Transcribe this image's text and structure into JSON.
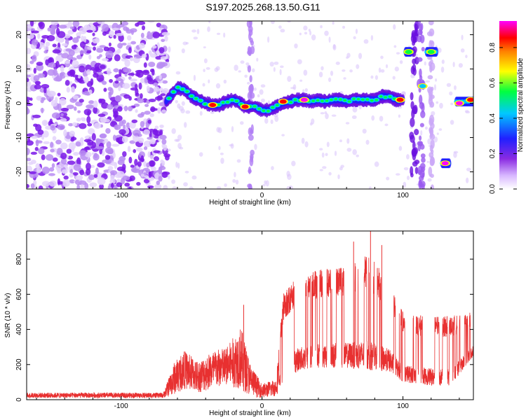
{
  "title": "S197.2025.268.13.50.G11",
  "colors": {
    "snr_line": "#e83030",
    "axis": "#000000"
  },
  "chart_data": [
    {
      "type": "heatmap",
      "xlabel": "Height of straight line (km)",
      "ylabel": "Frequency (Hz)",
      "xlim": [
        -167,
        150
      ],
      "ylim": [
        -25,
        24
      ],
      "xticks": [
        -100,
        0,
        100
      ],
      "xtick_labels": [
        "-100",
        "0",
        "100"
      ],
      "yticks": [
        -20,
        -10,
        0,
        10,
        20
      ],
      "ytick_labels": [
        "-20",
        "-10",
        "0",
        "10",
        "20"
      ],
      "colorbar": {
        "label": "Normalized spectral amplitude",
        "range": [
          0,
          0.95
        ],
        "ticks": [
          0.0,
          0.2,
          0.4,
          0.6,
          0.8
        ],
        "tick_labels": [
          "0.0",
          "0.2",
          "0.4",
          "0.6",
          "0.8"
        ]
      },
      "ridge": [
        {
          "x": -65,
          "f": 2
        },
        {
          "x": -60,
          "f": 4.5
        },
        {
          "x": -55,
          "f": 4
        },
        {
          "x": -50,
          "f": 2
        },
        {
          "x": -45,
          "f": 1
        },
        {
          "x": -40,
          "f": 0
        },
        {
          "x": -35,
          "f": -0.5
        },
        {
          "x": -30,
          "f": -0.5
        },
        {
          "x": -25,
          "f": 0.5
        },
        {
          "x": -20,
          "f": 1
        },
        {
          "x": -15,
          "f": 0
        },
        {
          "x": -12,
          "f": -1
        },
        {
          "x": -8,
          "f": -1
        },
        {
          "x": -5,
          "f": -1
        },
        {
          "x": 0,
          "f": -2
        },
        {
          "x": 5,
          "f": -2
        },
        {
          "x": 10,
          "f": -1
        },
        {
          "x": 15,
          "f": 0
        },
        {
          "x": 20,
          "f": 0.5
        },
        {
          "x": 25,
          "f": 1
        },
        {
          "x": 30,
          "f": 1
        },
        {
          "x": 35,
          "f": 0.5
        },
        {
          "x": 40,
          "f": 1
        },
        {
          "x": 45,
          "f": 0.5
        },
        {
          "x": 50,
          "f": 1
        },
        {
          "x": 55,
          "f": 1
        },
        {
          "x": 60,
          "f": 0.5
        },
        {
          "x": 65,
          "f": 1
        },
        {
          "x": 70,
          "f": 1
        },
        {
          "x": 75,
          "f": 1
        },
        {
          "x": 80,
          "f": 1
        },
        {
          "x": 85,
          "f": 2
        },
        {
          "x": 90,
          "f": 2
        },
        {
          "x": 95,
          "f": 1
        },
        {
          "x": 99,
          "f": 1
        }
      ],
      "hotspots": [
        {
          "x": 30,
          "f": 1,
          "v": 0.9
        },
        {
          "x": -35,
          "f": -0.5,
          "v": 0.8
        },
        {
          "x": -12,
          "f": -1,
          "v": 0.85
        },
        {
          "x": 15,
          "f": 0.5,
          "v": 0.8
        },
        {
          "x": 98,
          "f": 1,
          "v": 0.85
        },
        {
          "x": 140,
          "f": 0,
          "v": 0.9
        },
        {
          "x": 148,
          "f": 1,
          "v": 0.85
        },
        {
          "x": 130,
          "f": -17.5,
          "v": 0.9
        },
        {
          "x": 120,
          "f": 15,
          "v": 0.45
        },
        {
          "x": 104,
          "f": 15,
          "v": 0.45
        },
        {
          "x": 114,
          "f": 5,
          "v": 0.35
        }
      ]
    },
    {
      "type": "line",
      "xlabel": "Height of straight line (km)",
      "ylabel": "SNR (10 * v/v)",
      "xlim": [
        -167,
        150
      ],
      "ylim": [
        0,
        960
      ],
      "xticks": [
        -100,
        0,
        100
      ],
      "xtick_labels": [
        "-100",
        "0",
        "100"
      ],
      "yticks": [
        0,
        200,
        400,
        600,
        800
      ],
      "ytick_labels": [
        "0",
        "200",
        "400",
        "600",
        "800"
      ],
      "envelope": [
        {
          "x": -167,
          "lo": 10,
          "hi": 40
        },
        {
          "x": -70,
          "lo": 10,
          "hi": 40
        },
        {
          "x": -62,
          "lo": 30,
          "hi": 220
        },
        {
          "x": -55,
          "lo": 60,
          "hi": 280
        },
        {
          "x": -45,
          "lo": 40,
          "hi": 220
        },
        {
          "x": -35,
          "lo": 60,
          "hi": 280
        },
        {
          "x": -25,
          "lo": 80,
          "hi": 300
        },
        {
          "x": -15,
          "lo": 60,
          "hi": 420
        },
        {
          "x": -8,
          "lo": 20,
          "hi": 200
        },
        {
          "x": 0,
          "lo": 10,
          "hi": 90
        },
        {
          "x": 10,
          "lo": 20,
          "hi": 120
        },
        {
          "x": 15,
          "lo": 100,
          "hi": 600
        },
        {
          "x": 25,
          "lo": 160,
          "hi": 700
        },
        {
          "x": 40,
          "lo": 180,
          "hi": 740
        },
        {
          "x": 60,
          "lo": 180,
          "hi": 760
        },
        {
          "x": 75,
          "lo": 170,
          "hi": 830
        },
        {
          "x": 90,
          "lo": 160,
          "hi": 680
        },
        {
          "x": 100,
          "lo": 100,
          "hi": 500
        },
        {
          "x": 120,
          "lo": 80,
          "hi": 470
        },
        {
          "x": 135,
          "lo": 80,
          "hi": 480
        },
        {
          "x": 150,
          "lo": 250,
          "hi": 500
        }
      ],
      "peaks": [
        {
          "x": 77,
          "y": 960
        },
        {
          "x": 65,
          "y": 900
        },
        {
          "x": 85,
          "y": 880
        },
        {
          "x": -13,
          "y": 540
        }
      ]
    }
  ]
}
